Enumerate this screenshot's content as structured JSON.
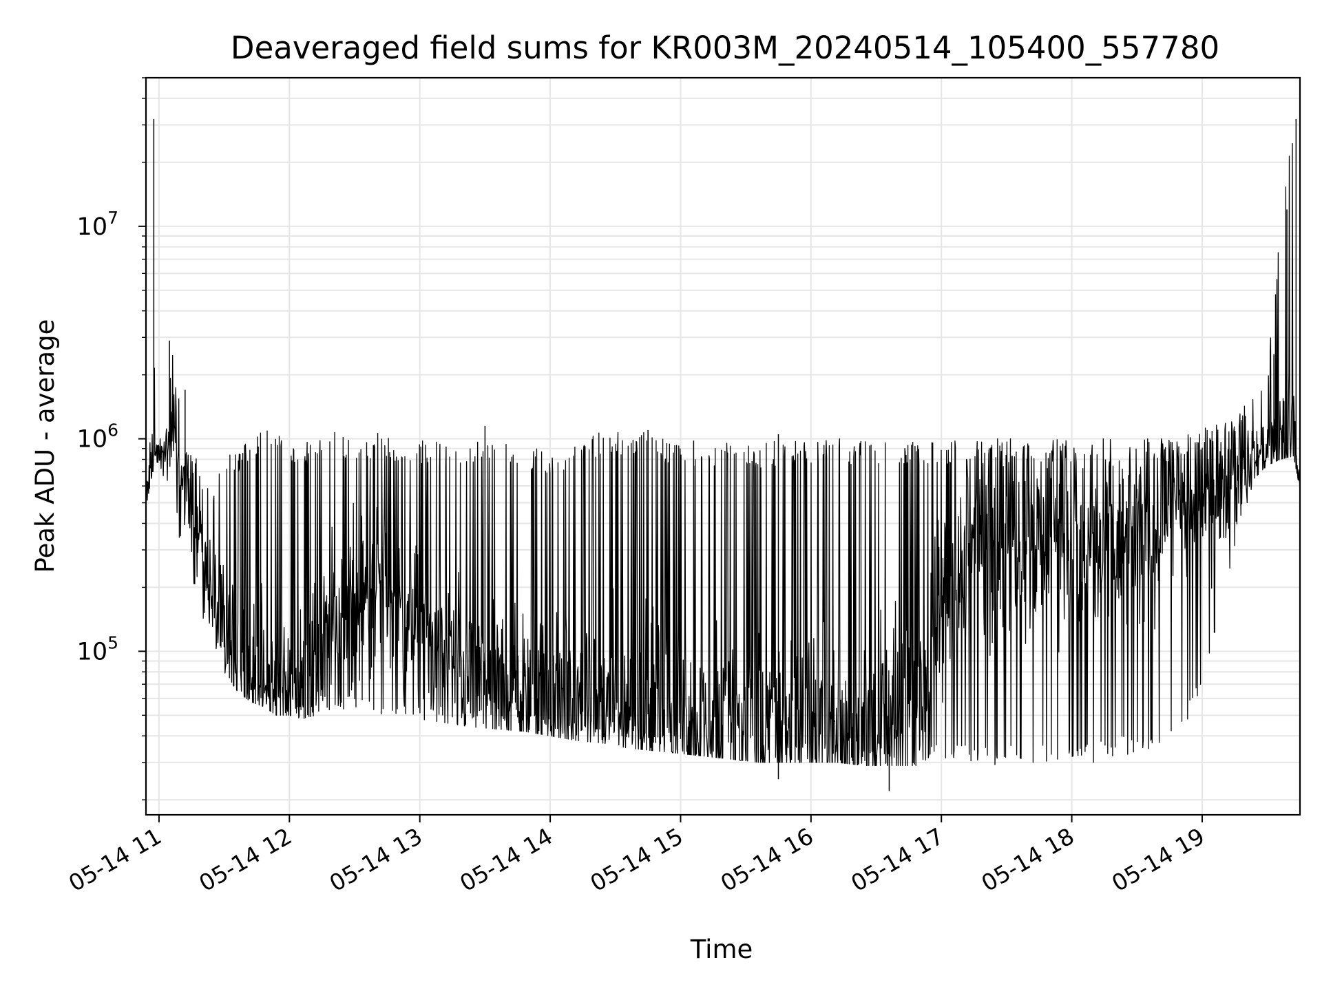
{
  "chart_data": {
    "type": "line",
    "title": "Deaveraged field sums for KR003M_20240514_105400_557780",
    "xlabel": "Time",
    "ylabel": "Peak ADU - average",
    "x_tick_labels": [
      "05-14 11",
      "05-14 12",
      "05-14 13",
      "05-14 14",
      "05-14 15",
      "05-14 16",
      "05-14 17",
      "05-14 18",
      "05-14 19"
    ],
    "x_ticks_hours": [
      11,
      12,
      13,
      14,
      15,
      16,
      17,
      18,
      19
    ],
    "xlim_hours": [
      10.9,
      19.75
    ],
    "y_scale": "log",
    "ylim": [
      17000,
      50000000
    ],
    "y_ticks": [
      {
        "value": 100000,
        "mantissa": "10",
        "exponent": "5"
      },
      {
        "value": 1000000,
        "mantissa": "10",
        "exponent": "6"
      },
      {
        "value": 10000000,
        "mantissa": "10",
        "exponent": "7"
      }
    ],
    "grid": true,
    "line_color": "#000000",
    "grid_color": "#e6e6e6",
    "series": [
      {
        "x_hours": [
          10.9,
          10.95,
          10.97,
          11.05,
          11.1,
          11.2,
          11.3,
          11.4,
          11.5,
          11.6,
          11.7,
          11.8,
          11.9,
          12.0,
          12.1,
          12.2,
          12.3,
          12.4,
          12.5,
          12.6,
          12.7,
          12.8,
          12.9,
          13.0,
          13.2,
          13.4,
          13.6,
          13.8,
          14.0,
          14.2,
          14.4,
          14.6,
          14.8,
          15.0,
          15.2,
          15.4,
          15.6,
          15.8,
          16.0,
          16.2,
          16.4,
          16.6,
          16.8,
          17.0,
          17.2,
          17.4,
          17.6,
          17.8,
          18.0,
          18.2,
          18.4,
          18.6,
          18.8,
          19.0,
          19.1,
          19.2,
          19.3,
          19.4,
          19.5,
          19.6,
          19.7,
          19.75
        ],
        "upper": [
          600000,
          32000000,
          1000000,
          1000000,
          2900000,
          900000,
          800000,
          600000,
          850000,
          900000,
          1000000,
          1100000,
          1100000,
          900000,
          950000,
          1000000,
          1100000,
          1050000,
          1000000,
          1050000,
          1100000,
          1000000,
          950000,
          1000000,
          950000,
          1000000,
          1000000,
          900000,
          900000,
          950000,
          1100000,
          1100000,
          1050000,
          950000,
          950000,
          980000,
          950000,
          1000000,
          1000000,
          1000000,
          1000000,
          980000,
          980000,
          1000000,
          1000000,
          1000000,
          1000000,
          1000000,
          980000,
          1000000,
          1000000,
          1000000,
          1000000,
          1100000,
          1200000,
          1300000,
          1500000,
          1700000,
          2000000,
          12000000,
          32000000,
          580000
        ],
        "lower": [
          470000,
          700000,
          700000,
          600000,
          500000,
          220000,
          160000,
          120000,
          80000,
          65000,
          58000,
          55000,
          50000,
          50000,
          48000,
          50000,
          52000,
          53000,
          52000,
          50000,
          48000,
          48000,
          48000,
          48000,
          46000,
          44000,
          43000,
          42000,
          40000,
          38000,
          37000,
          35000,
          34000,
          33000,
          32000,
          31000,
          30000,
          30000,
          30000,
          30000,
          29000,
          29000,
          29000,
          29000,
          29000,
          29000,
          29000,
          29000,
          29000,
          30000,
          32000,
          34000,
          40000,
          60000,
          120000,
          220000,
          400000,
          650000,
          750000,
          800000,
          830000,
          580000
        ],
        "typical": [
          550000,
          800000,
          850000,
          900000,
          950000,
          600000,
          350000,
          200000,
          120000,
          90000,
          75000,
          70000,
          65000,
          65000,
          70000,
          90000,
          120000,
          150000,
          180000,
          200000,
          190000,
          170000,
          150000,
          120000,
          90000,
          75000,
          68000,
          65000,
          62000,
          58000,
          55000,
          52000,
          50000,
          48000,
          47000,
          46000,
          45000,
          44000,
          43000,
          42000,
          42000,
          44000,
          60000,
          150000,
          300000,
          400000,
          400000,
          350000,
          320000,
          300000,
          320000,
          380000,
          420000,
          500000,
          550000,
          600000,
          700000,
          800000,
          900000,
          950000,
          900000,
          580000
        ]
      }
    ],
    "spikes": [
      {
        "x_hours": 11.08,
        "y": 2900000
      },
      {
        "x_hours": 11.2,
        "y": 1700000
      },
      {
        "x_hours": 13.5,
        "y": 1150000
      },
      {
        "x_hours": 14.75,
        "y": 1100000
      },
      {
        "x_hours": 15.1,
        "y": 980000
      },
      {
        "x_hours": 15.75,
        "y": 1050000
      },
      {
        "x_hours": 16.6,
        "y": 22000
      },
      {
        "x_hours": 15.75,
        "y": 25000
      },
      {
        "x_hours": 19.55,
        "y": 2500000
      },
      {
        "x_hours": 19.65,
        "y": 12000000
      },
      {
        "x_hours": 19.72,
        "y": 32000000
      },
      {
        "x_hours": 10.96,
        "y": 32000000
      }
    ]
  }
}
